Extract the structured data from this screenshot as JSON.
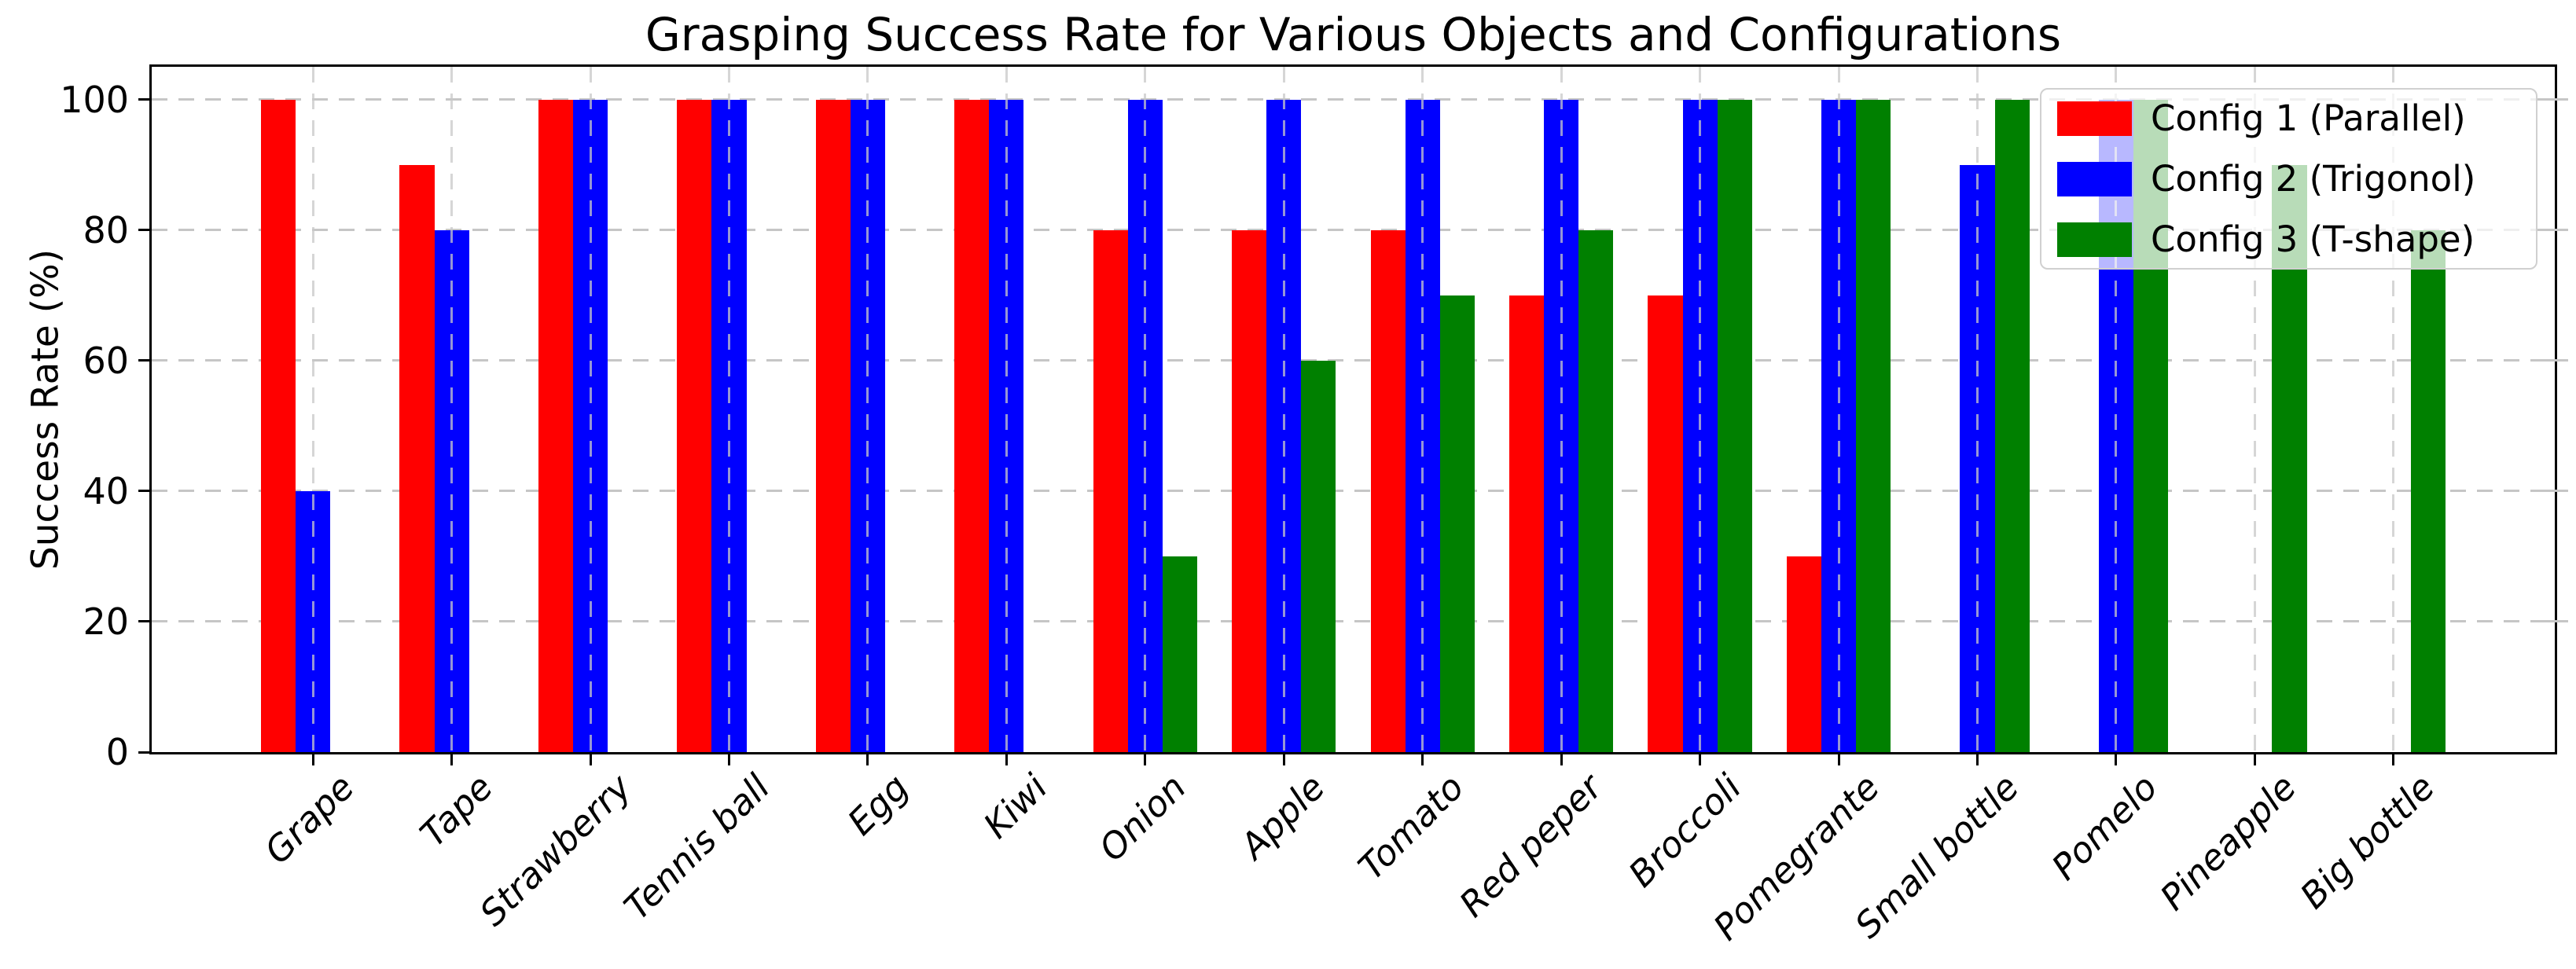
{
  "chart_data": {
    "type": "bar",
    "title": "Grasping Success Rate for Various Objects and Configurations",
    "xlabel": "",
    "ylabel": "Success Rate (%)",
    "categories": [
      "Grape",
      "Tape",
      "Strawberry",
      "Tennis ball",
      "Egg",
      "Kiwi",
      "Onion",
      "Apple",
      "Tomato",
      "Red peper",
      "Broccoli",
      "Pomegrante",
      "Small bottle",
      "Pomelo",
      "Pineapple",
      "Big bottle"
    ],
    "series": [
      {
        "name": "Config 1 (Parallel)",
        "color": "#ff0000",
        "values": [
          100,
          90,
          100,
          100,
          100,
          100,
          80,
          80,
          80,
          70,
          70,
          30,
          0,
          0,
          0,
          0
        ]
      },
      {
        "name": "Config 2 (Trigonol)",
        "color": "#0000ff",
        "values": [
          40,
          80,
          100,
          100,
          100,
          100,
          100,
          100,
          100,
          100,
          100,
          100,
          90,
          100,
          0,
          0
        ]
      },
      {
        "name": "Config 3 (T-shape)",
        "color": "#008000",
        "values": [
          0,
          0,
          0,
          0,
          0,
          0,
          30,
          60,
          70,
          80,
          100,
          100,
          100,
          100,
          90,
          80
        ]
      }
    ],
    "ylim": [
      0,
      105
    ],
    "yticks": [
      0,
      20,
      40,
      60,
      80,
      100
    ],
    "grid": true,
    "grid_style": "dashed",
    "legend_position": "upper right",
    "x_tick_rotation_deg": 45
  }
}
